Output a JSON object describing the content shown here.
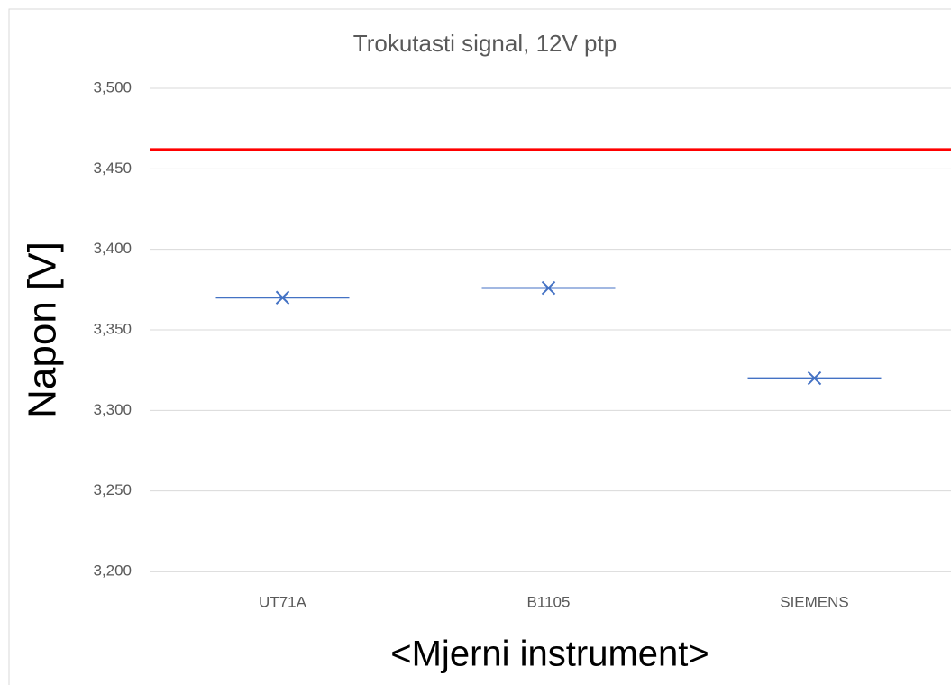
{
  "chart_data": {
    "type": "scatter",
    "title": "Trokutasti signal, 12V ptp",
    "y_label": "Napon [V]",
    "x_label": "<Mjerni instrument>",
    "categories": [
      "UT71A",
      "B1105",
      "SIEMENS"
    ],
    "values": [
      3.37,
      3.376,
      3.32
    ],
    "color": "#4472c4",
    "reference_line": {
      "value": 3.462,
      "color": "#ff0000"
    },
    "ylim": [
      3.2,
      3.5
    ],
    "yticks": [
      {
        "value": 3.2,
        "label": "3,200"
      },
      {
        "value": 3.25,
        "label": "3,250"
      },
      {
        "value": 3.3,
        "label": "3,300"
      },
      {
        "value": 3.35,
        "label": "3,350"
      },
      {
        "value": 3.4,
        "label": "3,400"
      },
      {
        "value": 3.45,
        "label": "3,450"
      },
      {
        "value": 3.5,
        "label": "3,500"
      }
    ],
    "grid": true
  }
}
